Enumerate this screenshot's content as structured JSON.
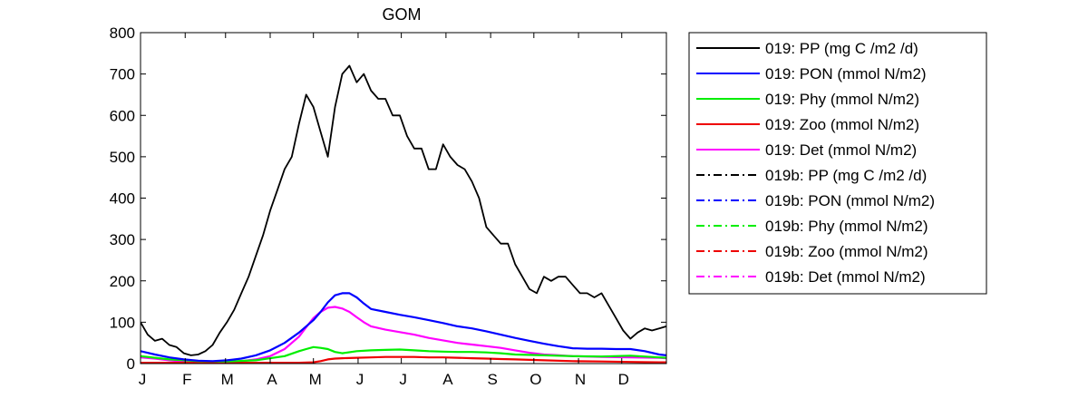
{
  "chart_data": {
    "type": "line",
    "title": "GOM",
    "xlabel": "",
    "ylabel": "",
    "xlim": [
      0,
      365
    ],
    "ylim": [
      0,
      800
    ],
    "yticks": [
      0,
      100,
      200,
      300,
      400,
      500,
      600,
      700,
      800
    ],
    "xticks": [
      {
        "label": "J",
        "day": 0
      },
      {
        "label": "F",
        "day": 31
      },
      {
        "label": "M",
        "day": 59
      },
      {
        "label": "A",
        "day": 90
      },
      {
        "label": "M",
        "day": 120
      },
      {
        "label": "J",
        "day": 151
      },
      {
        "label": "J",
        "day": 181
      },
      {
        "label": "A",
        "day": 212
      },
      {
        "label": "S",
        "day": 243
      },
      {
        "label": "O",
        "day": 273
      },
      {
        "label": "N",
        "day": 304
      },
      {
        "label": "D",
        "day": 334
      }
    ],
    "grid": false,
    "legend_position": "outside-right",
    "series": [
      {
        "name": "019: PP (mg C /m2 /d)",
        "color": "#000000",
        "style": "solid",
        "x": [
          0,
          5,
          10,
          15,
          20,
          25,
          30,
          35,
          40,
          45,
          50,
          55,
          60,
          65,
          70,
          75,
          80,
          85,
          90,
          95,
          100,
          105,
          110,
          115,
          120,
          125,
          130,
          135,
          140,
          145,
          150,
          155,
          160,
          165,
          170,
          175,
          180,
          185,
          190,
          195,
          200,
          205,
          210,
          215,
          220,
          225,
          230,
          235,
          240,
          245,
          250,
          255,
          260,
          265,
          270,
          275,
          280,
          285,
          290,
          295,
          300,
          305,
          310,
          315,
          320,
          325,
          330,
          335,
          340,
          345,
          350,
          355,
          360,
          365
        ],
        "y": [
          100,
          70,
          55,
          60,
          45,
          40,
          25,
          20,
          22,
          30,
          45,
          75,
          100,
          130,
          170,
          210,
          260,
          310,
          370,
          420,
          470,
          500,
          580,
          650,
          620,
          560,
          500,
          620,
          700,
          720,
          680,
          700,
          660,
          640,
          640,
          600,
          600,
          550,
          520,
          520,
          470,
          470,
          530,
          500,
          480,
          470,
          440,
          400,
          330,
          310,
          290,
          290,
          240,
          210,
          180,
          170,
          210,
          200,
          210,
          210,
          190,
          170,
          170,
          160,
          170,
          140,
          110,
          80,
          60,
          75,
          85,
          80,
          85,
          90
        ]
      },
      {
        "name": "019: PON (mmol N/m2)",
        "color": "#0000ff",
        "style": "solid",
        "x": [
          0,
          10,
          20,
          30,
          40,
          50,
          60,
          70,
          80,
          90,
          100,
          110,
          120,
          125,
          130,
          135,
          140,
          145,
          150,
          155,
          160,
          170,
          180,
          190,
          200,
          210,
          220,
          230,
          240,
          250,
          260,
          270,
          280,
          290,
          300,
          310,
          320,
          330,
          340,
          350,
          360,
          365
        ],
        "y": [
          30,
          22,
          15,
          10,
          7,
          6,
          8,
          12,
          20,
          32,
          50,
          75,
          105,
          125,
          148,
          165,
          170,
          170,
          160,
          145,
          132,
          125,
          118,
          112,
          105,
          98,
          90,
          85,
          78,
          70,
          62,
          55,
          48,
          42,
          37,
          36,
          36,
          35,
          35,
          30,
          22,
          20
        ]
      },
      {
        "name": "019: Phy (mmol N/m2)",
        "color": "#00ee00",
        "style": "solid",
        "x": [
          0,
          20,
          40,
          60,
          80,
          100,
          110,
          115,
          120,
          125,
          130,
          135,
          140,
          150,
          160,
          170,
          180,
          190,
          200,
          210,
          220,
          230,
          240,
          250,
          260,
          280,
          300,
          320,
          340,
          360,
          365
        ],
        "y": [
          18,
          10,
          6,
          5,
          8,
          18,
          30,
          35,
          40,
          38,
          35,
          28,
          25,
          30,
          32,
          33,
          34,
          32,
          30,
          29,
          28,
          28,
          27,
          25,
          22,
          20,
          18,
          17,
          19,
          15,
          14
        ]
      },
      {
        "name": "019: Zoo (mmol N/m2)",
        "color": "#ee0000",
        "style": "solid",
        "x": [
          0,
          40,
          80,
          110,
          120,
          125,
          130,
          135,
          140,
          150,
          160,
          170,
          180,
          190,
          200,
          210,
          220,
          230,
          240,
          250,
          260,
          270,
          280,
          300,
          320,
          340,
          360,
          365
        ],
        "y": [
          2,
          2,
          2,
          2,
          3,
          6,
          10,
          12,
          13,
          14,
          15,
          16,
          16,
          16,
          15,
          15,
          14,
          13,
          12,
          11,
          10,
          9,
          8,
          6,
          5,
          4,
          3,
          3
        ]
      },
      {
        "name": "019: Det (mmol N/m2)",
        "color": "#ff00ff",
        "style": "solid",
        "x": [
          0,
          10,
          20,
          30,
          40,
          50,
          60,
          70,
          80,
          90,
          100,
          110,
          115,
          120,
          125,
          130,
          135,
          140,
          145,
          150,
          155,
          160,
          170,
          180,
          190,
          200,
          210,
          220,
          230,
          240,
          250,
          260,
          270,
          280,
          290,
          300,
          320,
          340,
          360,
          365
        ],
        "y": [
          15,
          12,
          8,
          5,
          4,
          3,
          4,
          6,
          10,
          18,
          35,
          65,
          88,
          110,
          125,
          135,
          137,
          133,
          125,
          112,
          100,
          90,
          82,
          76,
          70,
          62,
          56,
          50,
          46,
          42,
          38,
          32,
          26,
          22,
          20,
          18,
          16,
          15,
          14,
          13
        ]
      },
      {
        "name": "019b: PP (mg C /m2 /d)",
        "color": "#000000",
        "style": "dashdot",
        "x": [],
        "y": []
      },
      {
        "name": "019b: PON (mmol N/m2)",
        "color": "#0000ff",
        "style": "dashdot",
        "x": [],
        "y": []
      },
      {
        "name": "019b: Phy (mmol N/m2)",
        "color": "#00ee00",
        "style": "dashdot",
        "x": [],
        "y": []
      },
      {
        "name": "019b: Zoo (mmol N/m2)",
        "color": "#ee0000",
        "style": "dashdot",
        "x": [],
        "y": []
      },
      {
        "name": "019b: Det (mmol N/m2)",
        "color": "#ff00ff",
        "style": "dashdot",
        "x": [],
        "y": []
      }
    ]
  }
}
